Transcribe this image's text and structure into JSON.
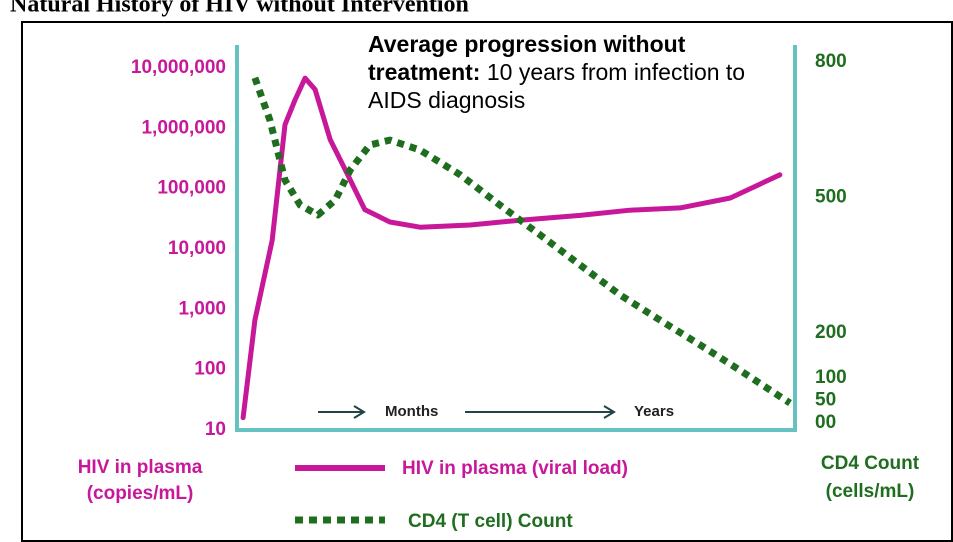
{
  "chart_data": {
    "type": "line",
    "title": "Natural History of HIV without Intervention",
    "annotations": {
      "bold": "Average progression without treatment:",
      "normal": "10 years from infection to AIDS diagnosis",
      "months": "Months",
      "years": "Years"
    },
    "ylabel": "HIV in plasma (copies/mL)",
    "y2label": "CD4 Count (cells/mL)",
    "xlim": [
      0,
      100
    ],
    "ylim": [
      10,
      10000000
    ],
    "yscale": "log",
    "yticks": [
      10,
      100,
      {
        "value": 1000,
        "label": "1,000"
      },
      {
        "value": 10000,
        "label": "10,000"
      },
      {
        "value": 100000,
        "label": "100,000"
      },
      {
        "value": 1000000,
        "label": "1,000,000"
      },
      {
        "value": 10000000,
        "label": "10,000,000"
      }
    ],
    "y2lim": [
      0,
      800
    ],
    "y2ticks": [
      {
        "value": 0,
        "label": "00"
      },
      50,
      100,
      200,
      500,
      800
    ],
    "series": [
      {
        "name": "HIV in plasma (viral load)",
        "color": "#c8189a",
        "style": "solid",
        "x": [
          1.1,
          3.2,
          6.3,
          8.6,
          10.4,
          12.2,
          14,
          16.7,
          19.4,
          22.9,
          27.4,
          32.8,
          41.8,
          50.7,
          61.5,
          70.4,
          79.4,
          88.4,
          97.3
        ],
        "values": [
          16,
          660,
          14000,
          1150000,
          2950000,
          6800000,
          4400000,
          650000,
          205000,
          45000,
          28000,
          23000,
          25000,
          30000,
          36000,
          44000,
          48000,
          70000,
          170000
        ]
      },
      {
        "name": "CD4 (T cell) Count",
        "color": "#1f6e1f",
        "style": "dotted",
        "axis": "y2",
        "x": [
          3.2,
          5.9,
          8.6,
          11.3,
          14.5,
          17.6,
          20.3,
          23.8,
          27.4,
          32.8,
          40,
          47.1,
          54.3,
          61.5,
          68.6,
          75.8,
          83,
          90.1,
          99.1
        ],
        "values": [
          765,
          671,
          538,
          483,
          461,
          494,
          561,
          616,
          627,
          605,
          550,
          483,
          417,
          350,
          284,
          228,
          173,
          117,
          44
        ]
      }
    ]
  }
}
